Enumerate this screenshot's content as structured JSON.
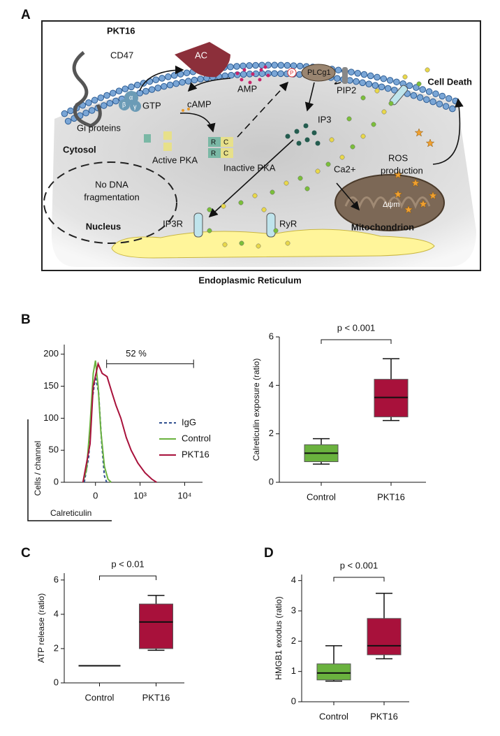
{
  "panel_labels": [
    "A",
    "B",
    "C",
    "D"
  ],
  "diagram": {
    "ligand": "PKT16",
    "receptor": "CD47",
    "enzyme": "AC",
    "amp": "AMP",
    "plc": "PLCg1",
    "phospho": "P",
    "pip2": "PIP2",
    "cell_death": "Cell Death",
    "gtp": "GTP",
    "camp": "cAMP",
    "ip3": "IP3",
    "gi_proteins": "Gi proteins",
    "g_subunits": [
      "α",
      "β",
      "γ"
    ],
    "cytosol": "Cytosol",
    "active_pka": "Active PKA",
    "inactive_pka": "Inactive PKA",
    "pka_subunits": [
      "R",
      "C",
      "R",
      "C"
    ],
    "calcium": "Ca2+",
    "ros": [
      "ROS",
      "production"
    ],
    "dna": [
      "No DNA",
      "fragmentation"
    ],
    "nucleus": "Nucleus",
    "ip3r": "IP3R",
    "ryr": "RyR",
    "potential": "Δψm",
    "mitochondrion": "Mitochondrion",
    "er": "Endoplasmic Reticulum"
  },
  "chart_data": [
    {
      "type": "line",
      "ylabel": "Cells / channel",
      "xlabel": "Calreticulin",
      "xlim": [
        1.3,
        4.4
      ],
      "xticks": [
        {
          "value": 2,
          "label": "0"
        },
        {
          "value": 3,
          "label": "10³"
        },
        {
          "value": 4,
          "label": "10⁴"
        }
      ],
      "ylim": [
        0,
        215
      ],
      "yticks": [
        0,
        50,
        100,
        150,
        200
      ],
      "series": [
        {
          "name": "IgG",
          "color": "#2f4f8f",
          "style": "dashed",
          "x": [
            1.75,
            1.85,
            1.93,
            2.0,
            2.07,
            2.14,
            2.2,
            2.25
          ],
          "values": [
            0,
            40,
            130,
            165,
            140,
            60,
            10,
            0
          ]
        },
        {
          "name": "Control",
          "color": "#6ab23e",
          "style": "solid",
          "x": [
            1.72,
            1.8,
            1.88,
            1.95,
            2.0,
            2.06,
            2.12,
            2.2,
            2.28,
            2.35
          ],
          "values": [
            0,
            20,
            90,
            170,
            190,
            150,
            80,
            25,
            5,
            0
          ]
        },
        {
          "name": "PKT16",
          "color": "#a8113b",
          "style": "solid",
          "x": [
            1.72,
            1.88,
            1.95,
            2.06,
            2.15,
            2.26,
            2.37,
            2.46,
            2.57,
            2.69,
            2.8,
            2.95,
            3.11,
            3.26,
            3.37
          ],
          "values": [
            0,
            60,
            150,
            185,
            170,
            165,
            140,
            120,
            100,
            70,
            50,
            30,
            15,
            5,
            0
          ]
        }
      ],
      "gate": {
        "label": "52 %",
        "x": [
          2.25,
          4.2
        ],
        "y": 185
      }
    },
    {
      "type": "box",
      "ylabel": "Calreticulin exposure (ratio)",
      "categories": [
        "Control",
        "PKT16"
      ],
      "colors": [
        "#6ab23e",
        "#a8113b"
      ],
      "min": [
        0.75,
        2.55
      ],
      "q1": [
        0.85,
        2.7
      ],
      "median": [
        1.2,
        3.5
      ],
      "q3": [
        1.55,
        4.25
      ],
      "max": [
        1.8,
        5.1
      ],
      "ylim": [
        0,
        6
      ],
      "yticks": [
        0,
        2,
        4,
        6
      ],
      "annotation": "p < 0.001"
    },
    {
      "type": "box",
      "ylabel": "ATP release (ratio)",
      "categories": [
        "Control",
        "PKT16"
      ],
      "colors": [
        "#6ab23e",
        "#a8113b"
      ],
      "min": [
        1,
        1.9
      ],
      "q1": [
        1,
        2.0
      ],
      "median": [
        1,
        3.55
      ],
      "q3": [
        1,
        4.6
      ],
      "max": [
        1,
        5.1
      ],
      "ylim": [
        0,
        6.4
      ],
      "yticks": [
        0,
        2,
        4,
        6
      ],
      "annotation": "p < 0.01"
    },
    {
      "type": "box",
      "ylabel": "HMGB1 exodus (ratio)",
      "categories": [
        "Control",
        "PKT16"
      ],
      "colors": [
        "#6ab23e",
        "#a8113b"
      ],
      "min": [
        0.68,
        1.42
      ],
      "q1": [
        0.72,
        1.55
      ],
      "median": [
        0.95,
        1.85
      ],
      "q3": [
        1.25,
        2.75
      ],
      "max": [
        1.85,
        3.58
      ],
      "ylim": [
        0,
        4.2
      ],
      "yticks": [
        0,
        1,
        2,
        3,
        4
      ],
      "annotation": "p < 0.001"
    }
  ]
}
